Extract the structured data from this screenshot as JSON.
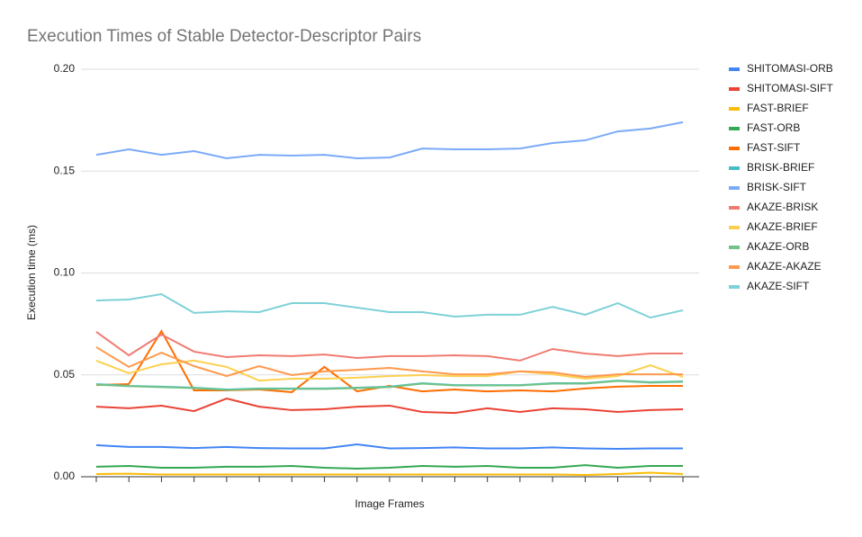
{
  "chart_data": {
    "type": "line",
    "title": "Execution Times of Stable Detector-Descriptor Pairs",
    "x_label": "Image Frames",
    "y_label": "Execution time (ms)",
    "categories": [
      null,
      null,
      null,
      null,
      null,
      null,
      null,
      null,
      null,
      null,
      null,
      null,
      null,
      null,
      null,
      null,
      null,
      null,
      null
    ],
    "ylim": [
      0,
      0.2
    ],
    "yticks": [
      {
        "value": 0,
        "label": "0.00"
      },
      0.05,
      {
        "value": 0.1,
        "label": "0.10"
      },
      0.15,
      {
        "value": 0.2,
        "label": "0.20"
      }
    ],
    "grid": true,
    "legend": "right",
    "series": [
      {
        "name": "SHITOMASI-ORB",
        "color": "#4285f4",
        "values": [
          0.0155,
          0.0146,
          0.0146,
          0.0141,
          0.0146,
          0.0141,
          0.0139,
          0.0139,
          0.0159,
          0.0139,
          0.0141,
          0.0144,
          0.0139,
          0.0139,
          0.0144,
          0.0139,
          0.0137,
          0.0139,
          0.0139
        ]
      },
      {
        "name": "SHITOMASI-SIFT",
        "color": "#ea4335",
        "values": [
          0.0344,
          0.0336,
          0.0349,
          0.0322,
          0.0384,
          0.0344,
          0.0327,
          0.0331,
          0.0344,
          0.0349,
          0.0318,
          0.0313,
          0.0336,
          0.0318,
          0.0336,
          0.0331,
          0.0318,
          0.0327,
          0.0331
        ]
      },
      {
        "name": "FAST-BRIEF",
        "color": "#fbbc04",
        "values": [
          0.0013,
          0.0015,
          0.0011,
          0.0011,
          0.0011,
          0.0011,
          0.0011,
          0.0011,
          0.0011,
          0.0011,
          0.0011,
          0.0011,
          0.0011,
          0.0011,
          0.0011,
          0.0009,
          0.0013,
          0.002,
          0.0013
        ]
      },
      {
        "name": "FAST-ORB",
        "color": "#34a853",
        "values": [
          0.0049,
          0.0053,
          0.0044,
          0.0044,
          0.0049,
          0.0049,
          0.0053,
          0.0044,
          0.004,
          0.0044,
          0.0053,
          0.0049,
          0.0053,
          0.0044,
          0.0044,
          0.0057,
          0.0044,
          0.0053,
          0.0053
        ]
      },
      {
        "name": "FAST-SIFT",
        "color": "#ff6d01",
        "values": [
          0.045,
          0.0455,
          0.0715,
          0.0424,
          0.0424,
          0.0428,
          0.0415,
          0.0539,
          0.0419,
          0.0446,
          0.0419,
          0.0428,
          0.0419,
          0.0424,
          0.0419,
          0.0433,
          0.0442,
          0.0446,
          0.0446
        ]
      },
      {
        "name": "BRISK-BRIEF",
        "color": "#46bdc6",
        "values": [
          0.0455,
          0.0446,
          0.0442,
          0.0437,
          0.0428,
          0.0433,
          0.0433,
          0.0433,
          0.0437,
          0.0442,
          0.0459,
          0.045,
          0.045,
          0.045,
          0.0459,
          0.0459,
          0.0472,
          0.0464,
          0.0468
        ]
      },
      {
        "name": "BRISK-SIFT",
        "color": "#7baaf7",
        "values": [
          0.158,
          0.1607,
          0.158,
          0.1598,
          0.1563,
          0.158,
          0.1576,
          0.158,
          0.1563,
          0.1567,
          0.1611,
          0.1607,
          0.1607,
          0.1611,
          0.1638,
          0.1651,
          0.1695,
          0.1709,
          0.174
        ]
      },
      {
        "name": "AKAZE-BRISK",
        "color": "#f07b72",
        "values": [
          0.0711,
          0.0596,
          0.0698,
          0.0614,
          0.0587,
          0.0596,
          0.0592,
          0.06,
          0.0583,
          0.0592,
          0.0592,
          0.0596,
          0.0592,
          0.057,
          0.0627,
          0.0605,
          0.0592,
          0.0605,
          0.0605
        ]
      },
      {
        "name": "AKAZE-BRIEF",
        "color": "#fcd04f",
        "values": [
          0.057,
          0.0508,
          0.0552,
          0.057,
          0.0539,
          0.0472,
          0.0481,
          0.0481,
          0.0486,
          0.0494,
          0.0499,
          0.0494,
          0.0494,
          0.0517,
          0.0503,
          0.0481,
          0.0494,
          0.0547,
          0.049
        ]
      },
      {
        "name": "AKAZE-ORB",
        "color": "#71c287",
        "values": [
          0.0452,
          0.0444,
          0.044,
          0.0435,
          0.0426,
          0.0431,
          0.0431,
          0.0431,
          0.0435,
          0.044,
          0.0457,
          0.0448,
          0.0448,
          0.0448,
          0.0457,
          0.0457,
          0.047,
          0.0462,
          0.0466
        ]
      },
      {
        "name": "AKAZE-AKAZE",
        "color": "#ff994d",
        "values": [
          0.0636,
          0.0539,
          0.0609,
          0.0543,
          0.0494,
          0.0543,
          0.0499,
          0.0517,
          0.0525,
          0.0534,
          0.0517,
          0.0503,
          0.0503,
          0.0517,
          0.0512,
          0.049,
          0.0503,
          0.0503,
          0.0503
        ]
      },
      {
        "name": "AKAZE-SIFT",
        "color": "#7ed1d7",
        "values": [
          0.0865,
          0.087,
          0.0896,
          0.0804,
          0.0812,
          0.0808,
          0.0852,
          0.0852,
          0.083,
          0.0808,
          0.0808,
          0.0786,
          0.0795,
          0.0795,
          0.0834,
          0.0795,
          0.0852,
          0.0781,
          0.0817
        ]
      }
    ]
  }
}
